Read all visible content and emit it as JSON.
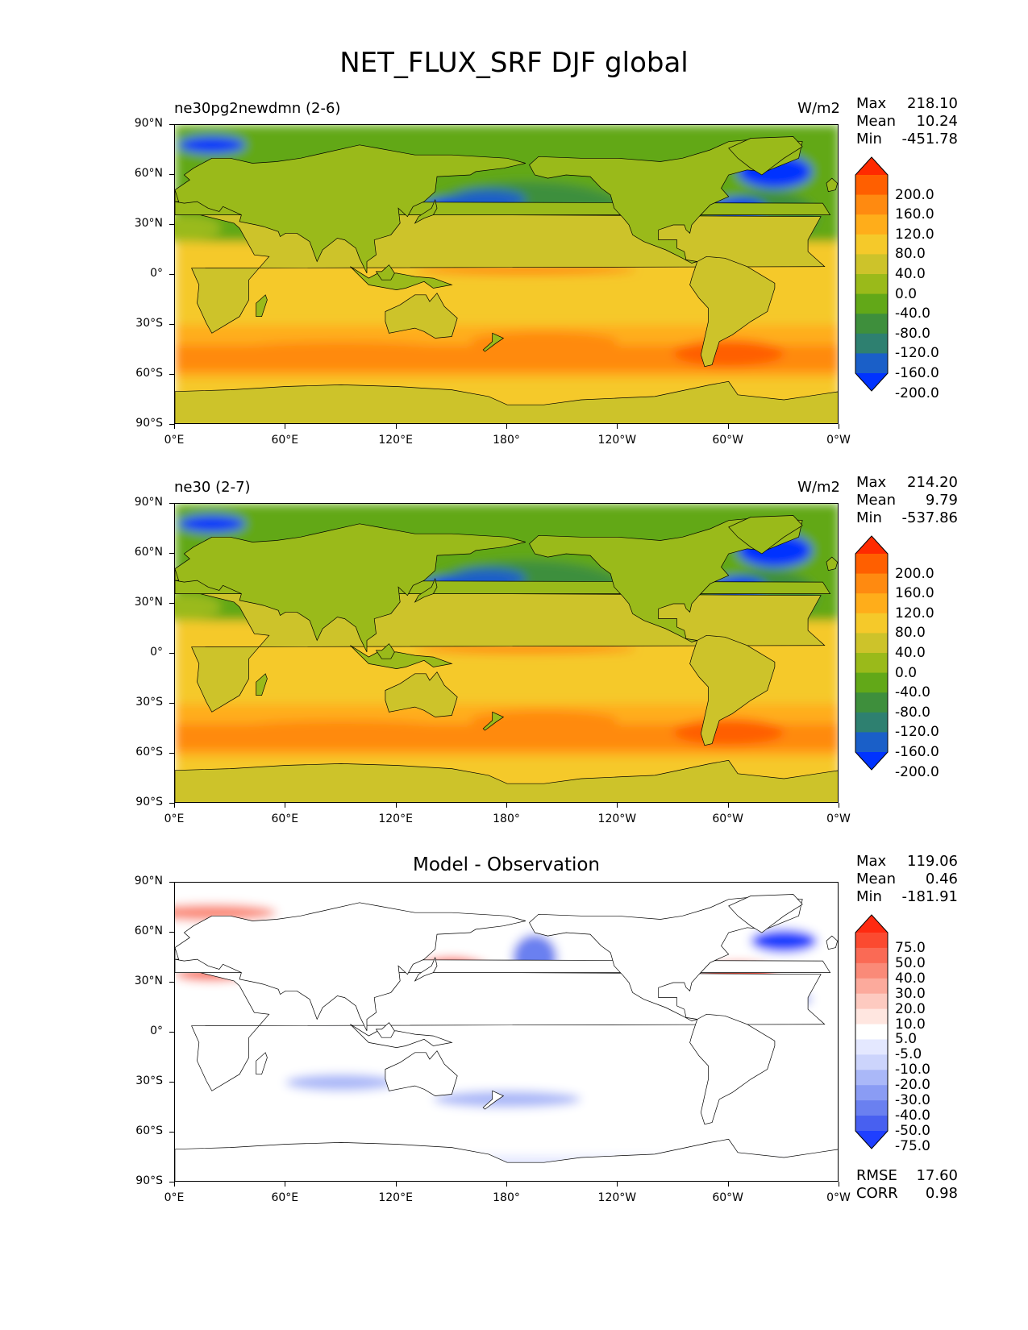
{
  "figure": {
    "title": "NET_FLUX_SRF DJF global"
  },
  "chart_data": [
    {
      "type": "heatmap",
      "title": "ne30pg2newdmn (2-6)",
      "units": "W/m2",
      "stats": {
        "max_label": "Max",
        "max": "218.10",
        "mean_label": "Mean",
        "mean": "10.24",
        "min_label": "Min",
        "min": "-451.78"
      },
      "x_ticks": [
        "0°E",
        "60°E",
        "120°E",
        "180°",
        "120°W",
        "60°W",
        "0°W"
      ],
      "y_ticks": [
        "90°N",
        "60°N",
        "30°N",
        "0°",
        "30°S",
        "60°S",
        "90°S"
      ],
      "colorbar": {
        "levels": [
          "200.0",
          "160.0",
          "120.0",
          "80.0",
          "40.0",
          "0.0",
          "-40.0",
          "-80.0",
          "-120.0",
          "-160.0",
          "-200.0"
        ],
        "colors": [
          "#ff2a00",
          "#ff5f00",
          "#ff8a10",
          "#ffad1a",
          "#f5c92a",
          "#cdc32a",
          "#9aba1a",
          "#62a818",
          "#3e8f3c",
          "#2e8070",
          "#1a5fc8",
          "#0033ff"
        ]
      }
    },
    {
      "type": "heatmap",
      "title": "ne30 (2-7)",
      "units": "W/m2",
      "stats": {
        "max_label": "Max",
        "max": "214.20",
        "mean_label": "Mean",
        "mean": "9.79",
        "min_label": "Min",
        "min": "-537.86"
      },
      "x_ticks": [
        "0°E",
        "60°E",
        "120°E",
        "180°",
        "120°W",
        "60°W",
        "0°W"
      ],
      "y_ticks": [
        "90°N",
        "60°N",
        "30°N",
        "0°",
        "30°S",
        "60°S",
        "90°S"
      ],
      "colorbar": {
        "levels": [
          "200.0",
          "160.0",
          "120.0",
          "80.0",
          "40.0",
          "0.0",
          "-40.0",
          "-80.0",
          "-120.0",
          "-160.0",
          "-200.0"
        ],
        "colors": [
          "#ff2a00",
          "#ff5f00",
          "#ff8a10",
          "#ffad1a",
          "#f5c92a",
          "#cdc32a",
          "#9aba1a",
          "#62a818",
          "#3e8f3c",
          "#2e8070",
          "#1a5fc8",
          "#0033ff"
        ]
      }
    },
    {
      "type": "heatmap",
      "title": "Model - Observation",
      "units": "",
      "stats": {
        "max_label": "Max",
        "max": "119.06",
        "mean_label": "Mean",
        "mean": "0.46",
        "min_label": "Min",
        "min": "-181.91"
      },
      "rmse_label": "RMSE",
      "rmse": "17.60",
      "corr_label": "CORR",
      "corr": "0.98",
      "x_ticks": [
        "0°E",
        "60°E",
        "120°E",
        "180°",
        "120°W",
        "60°W",
        "0°W"
      ],
      "y_ticks": [
        "90°N",
        "60°N",
        "30°N",
        "0°",
        "30°S",
        "60°S",
        "90°S"
      ],
      "colorbar": {
        "levels": [
          "75.0",
          "50.0",
          "40.0",
          "30.0",
          "20.0",
          "10.0",
          "5.0",
          "-5.0",
          "-10.0",
          "-20.0",
          "-30.0",
          "-40.0",
          "-50.0",
          "-75.0"
        ],
        "colors": [
          "#ff2a10",
          "#fb4a30",
          "#fa6a55",
          "#fa8a78",
          "#fcaa9c",
          "#fdcac0",
          "#ffe6e0",
          "#ffffff",
          "#e4e8ff",
          "#ccd4fc",
          "#aab8f8",
          "#8a9cf4",
          "#6a80f0",
          "#4860f0",
          "#1f3fff"
        ]
      }
    }
  ]
}
